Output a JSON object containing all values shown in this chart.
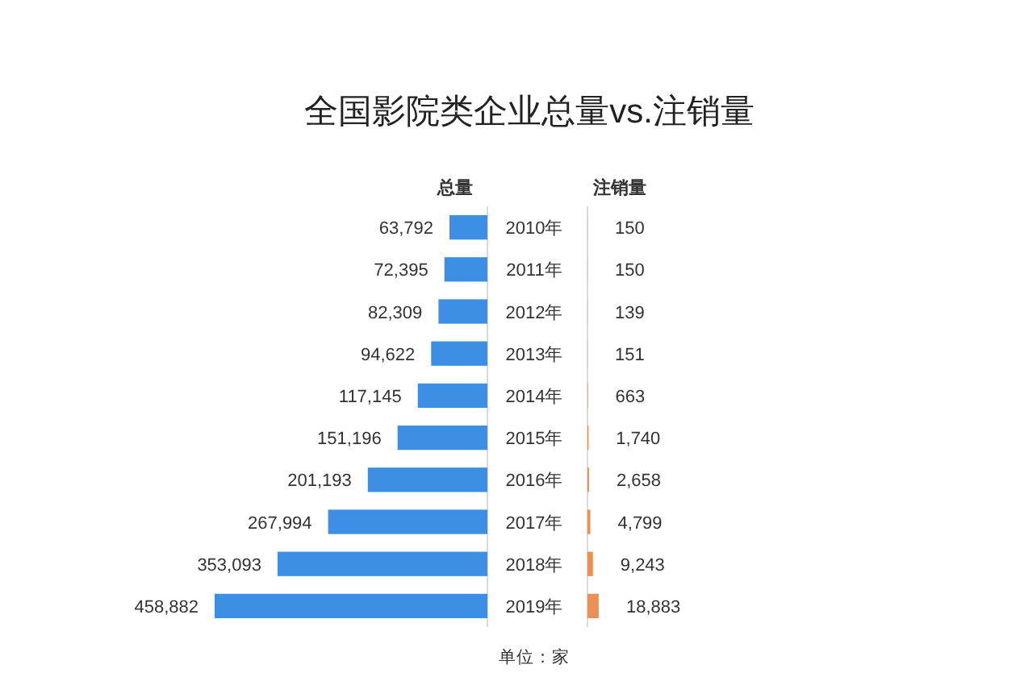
{
  "chart_data": [
    {
      "type": "bar",
      "orientation": "horizontal",
      "title": "全国影院类企业总量vs.注销量",
      "categories": [
        "2010年",
        "2011年",
        "2012年",
        "2013年",
        "2014年",
        "2015年",
        "2016年",
        "2017年",
        "2018年",
        "2019年"
      ],
      "series": [
        {
          "name": "总量",
          "color": "#3d8fe6",
          "values": [
            63792,
            72395,
            82309,
            94622,
            117145,
            151196,
            201193,
            267994,
            353093,
            458882
          ],
          "value_labels": [
            "63,792",
            "72,395",
            "82,309",
            "94,622",
            "117,145",
            "151,196",
            "201,193",
            "267,994",
            "353,093",
            "458,882"
          ]
        }
      ],
      "tick_labels": "y",
      "annotations": [
        "单位：家"
      ]
    },
    {
      "type": "bar",
      "orientation": "horizontal",
      "categories": [
        null,
        null,
        null,
        null,
        null,
        null,
        null,
        null,
        null,
        null
      ],
      "series": [
        {
          "name": "注销量",
          "color": "#eb9158",
          "values": [
            150,
            150,
            139,
            151,
            663,
            1740,
            2658,
            4799,
            9243,
            18883
          ],
          "value_labels": [
            "150",
            "150",
            "139",
            "151",
            "663",
            "1,740",
            "2,658",
            "4,799",
            "9,243",
            "18,883"
          ]
        }
      ]
    }
  ]
}
